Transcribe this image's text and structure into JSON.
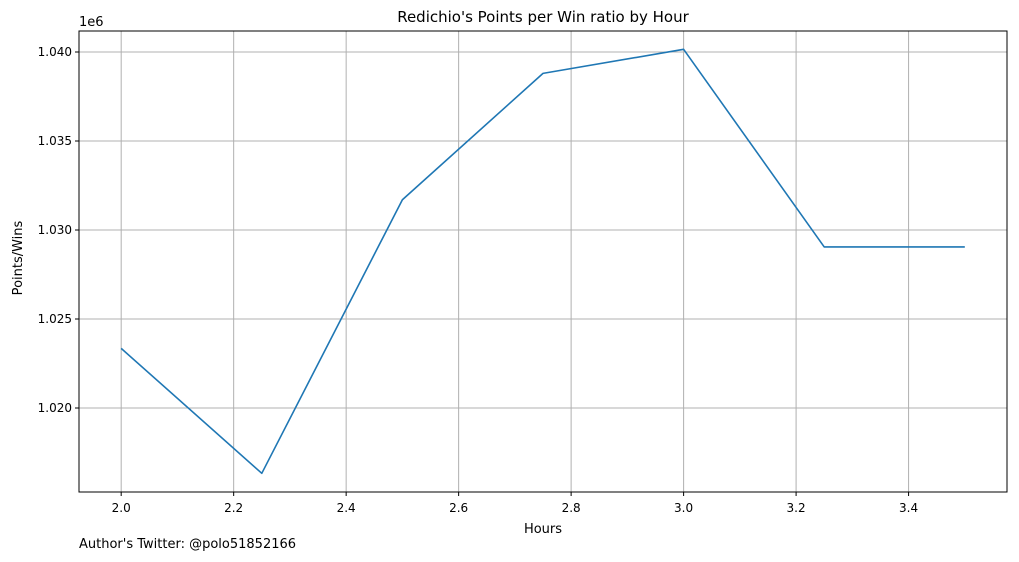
{
  "footer_text": "Author's Twitter: @polo51852166",
  "chart_data": {
    "type": "line",
    "title": "Redichio's Points per Win ratio by Hour",
    "xlabel": "Hours",
    "ylabel": "Points/Wins",
    "y_offset_label": "1e6",
    "x": [
      2.0,
      2.25,
      2.5,
      2.75,
      3.0,
      3.25,
      3.5
    ],
    "series": [
      {
        "values": [
          1023350,
          1016330,
          1031700,
          1038800,
          1040150,
          1029050,
          1029050
        ],
        "color": "#1f77b4"
      }
    ],
    "xlim": [
      1.925,
      3.575
    ],
    "ylim": [
      1015280,
      1041180
    ],
    "xticks": [
      2.0,
      2.2,
      2.4,
      2.6,
      2.8,
      3.0,
      3.2,
      3.4
    ],
    "xtick_labels": [
      "2.0",
      "2.2",
      "2.4",
      "2.6",
      "2.8",
      "3.0",
      "3.2",
      "3.4"
    ],
    "yticks": [
      1020000,
      1025000,
      1030000,
      1035000,
      1040000
    ],
    "ytick_labels": [
      "1.020",
      "1.025",
      "1.030",
      "1.035",
      "1.040"
    ],
    "grid": true
  }
}
